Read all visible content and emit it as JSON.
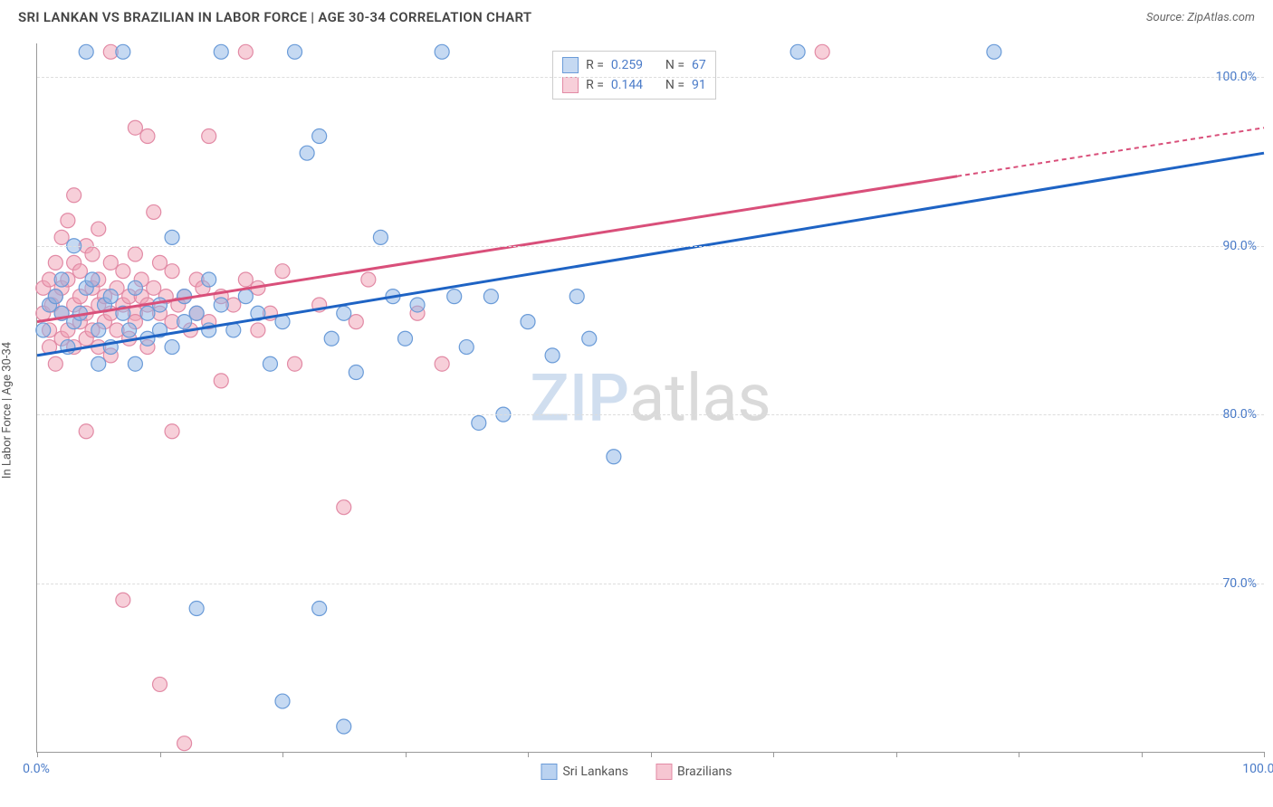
{
  "title": "SRI LANKAN VS BRAZILIAN IN LABOR FORCE | AGE 30-34 CORRELATION CHART",
  "source": "Source: ZipAtlas.com",
  "chart": {
    "type": "scatter",
    "y_axis_label": "In Labor Force | Age 30-34",
    "watermark_part1": "ZIP",
    "watermark_part2": "atlas",
    "xlim": [
      0,
      100
    ],
    "ylim": [
      60,
      102
    ],
    "x_ticks": [
      0,
      50,
      100
    ],
    "x_tick_labels": [
      "0.0%",
      "",
      "100.0%"
    ],
    "x_minor_ticks": [
      10,
      20,
      30,
      40,
      60,
      70,
      80,
      90
    ],
    "y_ticks": [
      70,
      80,
      90,
      100
    ],
    "y_tick_labels": [
      "70.0%",
      "80.0%",
      "90.0%",
      "100.0%"
    ],
    "grid_color": "#dddddd",
    "background_color": "#ffffff",
    "series": [
      {
        "name": "Sri Lankans",
        "color_fill": "rgba(140,180,230,0.5)",
        "color_stroke": "#6a9bd8",
        "trend_color": "#1e63c4",
        "marker_radius": 8,
        "R": "0.259",
        "N": "67",
        "trend": {
          "x1": 0,
          "y1": 83.5,
          "x2": 100,
          "y2": 95.5,
          "solid_until_x": 100
        },
        "points": [
          [
            0.5,
            85
          ],
          [
            1,
            86.5
          ],
          [
            1.5,
            87
          ],
          [
            2,
            86
          ],
          [
            2,
            88
          ],
          [
            2.5,
            84
          ],
          [
            3,
            90
          ],
          [
            3,
            85.5
          ],
          [
            3.5,
            86
          ],
          [
            4,
            87.5
          ],
          [
            4,
            101.5
          ],
          [
            4.5,
            88
          ],
          [
            5,
            85
          ],
          [
            5,
            83
          ],
          [
            5.5,
            86.5
          ],
          [
            6,
            84
          ],
          [
            6,
            87
          ],
          [
            7,
            101.5
          ],
          [
            7,
            86
          ],
          [
            7.5,
            85
          ],
          [
            8,
            87.5
          ],
          [
            8,
            83
          ],
          [
            9,
            86
          ],
          [
            9,
            84.5
          ],
          [
            10,
            85
          ],
          [
            10,
            86.5
          ],
          [
            11,
            90.5
          ],
          [
            11,
            84
          ],
          [
            12,
            85.5
          ],
          [
            12,
            87
          ],
          [
            13,
            68.5
          ],
          [
            13,
            86
          ],
          [
            14,
            85
          ],
          [
            14,
            88
          ],
          [
            15,
            101.5
          ],
          [
            15,
            86.5
          ],
          [
            16,
            85
          ],
          [
            17,
            87
          ],
          [
            18,
            86
          ],
          [
            19,
            83
          ],
          [
            20,
            63
          ],
          [
            20,
            85.5
          ],
          [
            21,
            101.5
          ],
          [
            22,
            95.5
          ],
          [
            23,
            96.5
          ],
          [
            23,
            68.5
          ],
          [
            24,
            84.5
          ],
          [
            25,
            86
          ],
          [
            25,
            61.5
          ],
          [
            26,
            82.5
          ],
          [
            28,
            90.5
          ],
          [
            29,
            87
          ],
          [
            30,
            84.5
          ],
          [
            31,
            86.5
          ],
          [
            33,
            101.5
          ],
          [
            34,
            87
          ],
          [
            35,
            84
          ],
          [
            36,
            79.5
          ],
          [
            37,
            87
          ],
          [
            38,
            80
          ],
          [
            40,
            85.5
          ],
          [
            42,
            83.5
          ],
          [
            44,
            87
          ],
          [
            45,
            84.5
          ],
          [
            47,
            77.5
          ],
          [
            62,
            101.5
          ],
          [
            78,
            101.5
          ]
        ]
      },
      {
        "name": "Brazilians",
        "color_fill": "rgba(240,160,180,0.5)",
        "color_stroke": "#e28aa5",
        "trend_color": "#d94f7a",
        "marker_radius": 8,
        "R": "0.144",
        "N": "91",
        "trend": {
          "x1": 0,
          "y1": 85.5,
          "x2": 100,
          "y2": 97,
          "solid_until_x": 75
        },
        "points": [
          [
            0.5,
            86
          ],
          [
            0.5,
            87.5
          ],
          [
            1,
            85
          ],
          [
            1,
            88
          ],
          [
            1,
            84
          ],
          [
            1.2,
            86.5
          ],
          [
            1.5,
            87
          ],
          [
            1.5,
            89
          ],
          [
            1.5,
            83
          ],
          [
            2,
            90.5
          ],
          [
            2,
            86
          ],
          [
            2,
            84.5
          ],
          [
            2,
            87.5
          ],
          [
            2.5,
            88
          ],
          [
            2.5,
            85
          ],
          [
            2.5,
            91.5
          ],
          [
            3,
            86.5
          ],
          [
            3,
            89
          ],
          [
            3,
            84
          ],
          [
            3,
            93
          ],
          [
            3.5,
            87
          ],
          [
            3.5,
            85.5
          ],
          [
            3.5,
            88.5
          ],
          [
            4,
            86
          ],
          [
            4,
            90
          ],
          [
            4,
            84.5
          ],
          [
            4,
            79
          ],
          [
            4.5,
            87.5
          ],
          [
            4.5,
            85
          ],
          [
            4.5,
            89.5
          ],
          [
            5,
            86.5
          ],
          [
            5,
            88
          ],
          [
            5,
            84
          ],
          [
            5,
            91
          ],
          [
            5.5,
            87
          ],
          [
            5.5,
            85.5
          ],
          [
            6,
            86
          ],
          [
            6,
            89
          ],
          [
            6,
            83.5
          ],
          [
            6,
            101.5
          ],
          [
            6.5,
            87.5
          ],
          [
            6.5,
            85
          ],
          [
            7,
            88.5
          ],
          [
            7,
            86.5
          ],
          [
            7,
            69
          ],
          [
            7.5,
            87
          ],
          [
            7.5,
            84.5
          ],
          [
            8,
            86
          ],
          [
            8,
            89.5
          ],
          [
            8,
            85.5
          ],
          [
            8,
            97
          ],
          [
            8.5,
            87
          ],
          [
            8.5,
            88
          ],
          [
            9,
            86.5
          ],
          [
            9,
            84
          ],
          [
            9,
            96.5
          ],
          [
            9.5,
            87.5
          ],
          [
            9.5,
            92
          ],
          [
            10,
            86
          ],
          [
            10,
            89
          ],
          [
            10,
            64
          ],
          [
            10.5,
            87
          ],
          [
            11,
            85.5
          ],
          [
            11,
            88.5
          ],
          [
            11,
            79
          ],
          [
            11.5,
            86.5
          ],
          [
            12,
            87
          ],
          [
            12,
            60.5
          ],
          [
            12.5,
            85
          ],
          [
            13,
            88
          ],
          [
            13,
            86
          ],
          [
            13.5,
            87.5
          ],
          [
            14,
            96.5
          ],
          [
            14,
            85.5
          ],
          [
            15,
            87
          ],
          [
            15,
            82
          ],
          [
            16,
            86.5
          ],
          [
            17,
            88
          ],
          [
            17,
            101.5
          ],
          [
            18,
            85
          ],
          [
            18,
            87.5
          ],
          [
            19,
            86
          ],
          [
            20,
            88.5
          ],
          [
            21,
            83
          ],
          [
            23,
            86.5
          ],
          [
            25,
            74.5
          ],
          [
            26,
            85.5
          ],
          [
            27,
            88
          ],
          [
            31,
            86
          ],
          [
            33,
            83
          ],
          [
            64,
            101.5
          ]
        ]
      }
    ],
    "legend_top": {
      "R_label": "R =",
      "N_label": "N =",
      "value_color": "#4a7bc8",
      "label_color": "#555555"
    },
    "legend_bottom": [
      {
        "label": "Sri Lankans",
        "fill": "rgba(140,180,230,0.6)",
        "stroke": "#6a9bd8"
      },
      {
        "label": "Brazilians",
        "fill": "rgba(240,160,180,0.6)",
        "stroke": "#e28aa5"
      }
    ]
  }
}
